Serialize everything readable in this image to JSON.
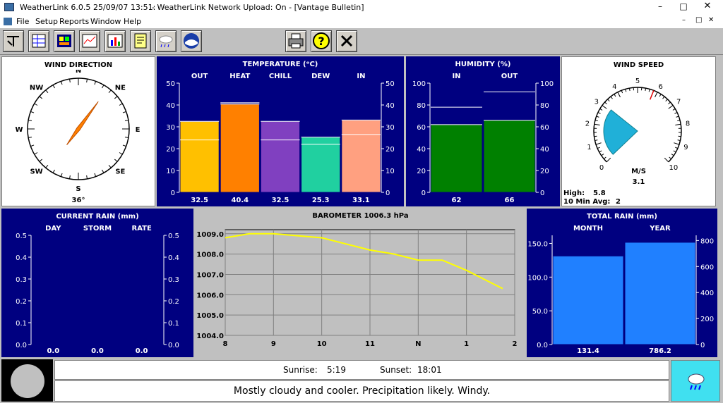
{
  "window": {
    "title_app": "WeatherLink 6.0.5",
    "title_time": "25/09/07  13:51:",
    "title_status": "- WeatherLink Network Upload: On - [Vantage Bulletin]"
  },
  "menu": [
    "File",
    "Setup",
    "Reports",
    "Window",
    "Help"
  ],
  "toolbar": {
    "icons": [
      "wind-chart-icon",
      "data-table-icon",
      "bulletin-icon",
      "strip-chart-icon",
      "summary-icon",
      "notes-icon",
      "weather-map-icon",
      "noaa-icon"
    ],
    "right": [
      "print-icon",
      "help-icon",
      "close-x-icon"
    ]
  },
  "wind_direction": {
    "title": "WIND DIRECTION",
    "cardinals": [
      "N",
      "NE",
      "E",
      "SE",
      "S",
      "SW",
      "W",
      "NW"
    ],
    "value": "36°",
    "degrees": 36
  },
  "temperature": {
    "title": "TEMPERATURE  (ᵒC)",
    "ticks": [
      "50",
      "40",
      "30",
      "20",
      "10",
      "0"
    ],
    "bars": [
      {
        "label": "OUT",
        "value": 32.5,
        "text": "32.5",
        "color": "#ffc000",
        "line": 24
      },
      {
        "label": "HEAT",
        "value": 40.4,
        "text": "40.4",
        "color": "#ff8000",
        "line": 41
      },
      {
        "label": "CHILL",
        "value": 32.5,
        "text": "32.5",
        "color": "#8040c0",
        "line": 24
      },
      {
        "label": "DEW",
        "value": 25.3,
        "text": "25.3",
        "color": "#20d0a0",
        "line": 22
      },
      {
        "label": "IN",
        "value": 33.1,
        "text": "33.1",
        "color": "#ffa080",
        "line": 26.5
      }
    ]
  },
  "humidity": {
    "title": "HUMIDITY  (%)",
    "ticks": [
      "100",
      "80",
      "60",
      "40",
      "20",
      "0"
    ],
    "bars": [
      {
        "label": "IN",
        "value": 62,
        "text": "62",
        "line": 78
      },
      {
        "label": "OUT",
        "value": 66,
        "text": "66",
        "line": 92
      }
    ]
  },
  "wind_speed": {
    "title": "WIND SPEED",
    "ticks": [
      "0",
      "1",
      "2",
      "3",
      "4",
      "5",
      "6",
      "7",
      "8",
      "9",
      "10"
    ],
    "unit": "M/S",
    "value": "3.1",
    "high_label": "High:",
    "high_value": "5.8",
    "avg_label": "10 Min Avg:",
    "avg_value": "2"
  },
  "current_rain": {
    "title": "CURRENT RAIN  (mm)",
    "cols": [
      "DAY",
      "STORM",
      "RATE"
    ],
    "values": [
      "0.0",
      "0.0",
      "0.0"
    ],
    "ticks": [
      "0.5",
      "0.4",
      "0.3",
      "0.2",
      "0.1",
      "0.0"
    ]
  },
  "barometer": {
    "title": "BAROMETER 1006.3 hPa",
    "yticks": [
      "1009.0",
      "1008.0",
      "1007.0",
      "1006.0",
      "1005.0",
      "1004.0"
    ],
    "xticks": [
      "8",
      "9",
      "10",
      "11",
      "N",
      "1",
      "2"
    ]
  },
  "chart_data": {
    "type": "line",
    "title": "BAROMETER 1006.3 hPa",
    "xlabel": "",
    "ylabel": "",
    "x": [
      8,
      8.5,
      9,
      9.5,
      10,
      10.5,
      11,
      11.5,
      12,
      12.5,
      13,
      13.5,
      13.75
    ],
    "values": [
      1008.8,
      1009.0,
      1009.0,
      1008.9,
      1008.8,
      1008.5,
      1008.2,
      1008.0,
      1007.7,
      1007.7,
      1007.2,
      1006.6,
      1006.3
    ],
    "ylim": [
      1004,
      1009.2
    ],
    "xlim": [
      8,
      14
    ],
    "grid": true
  },
  "total_rain": {
    "title": "TOTAL RAIN  (mm)",
    "cols": [
      "MONTH",
      "YEAR"
    ],
    "values": [
      "131.4",
      "786.2"
    ],
    "left_ticks": [
      "150.0",
      "100.0",
      "50.0",
      "0.0"
    ],
    "right_ticks": [
      "800",
      "600",
      "400",
      "200",
      "0"
    ],
    "month_value": 131.4,
    "year_value": 786.2
  },
  "bottom": {
    "sunrise_label": "Sunrise:",
    "sunrise": "5:19",
    "sunset_label": "Sunset:",
    "sunset": "18:01",
    "forecast": "Mostly cloudy and cooler.  Precipitation likely.  Windy."
  }
}
